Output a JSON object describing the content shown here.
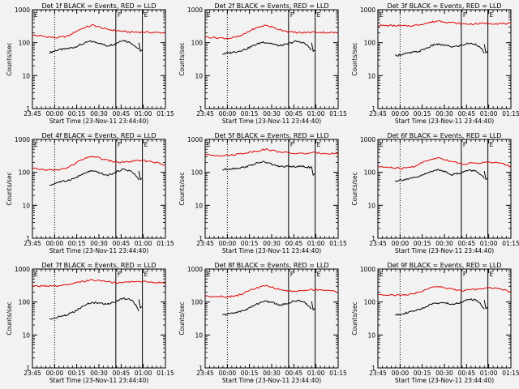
{
  "chart_data": [
    {
      "type": "line",
      "title": "Det 1f BLACK = Events, RED = LLD",
      "xlabel": "Start Time (23-Nov-11 23:44:40)",
      "ylabel": "Counts/sec",
      "yscale": "log",
      "ylim": [
        1,
        1000
      ],
      "xticks": [
        "23:45",
        "00:00",
        "00:15",
        "00:30",
        "00:45",
        "01:00",
        "01:15"
      ],
      "yticks": [
        "1",
        "10",
        "100",
        "1000"
      ],
      "flags": [
        "E",
        "F",
        "E"
      ],
      "series": [
        {
          "color": "#000000",
          "values": [
            50,
            60,
            65,
            72,
            90,
            110,
            100,
            80,
            90,
            120,
            100,
            60
          ]
        },
        {
          "color": "#e00000",
          "values": [
            170,
            155,
            140,
            160,
            260,
            340,
            260,
            230,
            210,
            210,
            205,
            200
          ]
        }
      ]
    },
    {
      "type": "line",
      "title": "Det 2f BLACK = Events, RED = LLD",
      "xlabel": "Start Time (23-Nov-11 23:44:40)",
      "ylabel": "Counts/sec",
      "yscale": "log",
      "ylim": [
        1,
        1000
      ],
      "xticks": [
        "23:45",
        "00:00",
        "00:15",
        "00:30",
        "00:45",
        "01:00",
        "01:15"
      ],
      "yticks": [
        "1",
        "10",
        "100",
        "1000"
      ],
      "flags": [
        "E",
        "F",
        "E"
      ],
      "series": [
        {
          "color": "#000000",
          "values": [
            45,
            50,
            55,
            65,
            85,
            105,
            95,
            80,
            90,
            110,
            100,
            60
          ]
        },
        {
          "color": "#e00000",
          "values": [
            150,
            140,
            135,
            160,
            260,
            340,
            260,
            210,
            200,
            210,
            205,
            200
          ]
        }
      ]
    },
    {
      "type": "line",
      "title": "Det 3f BLACK = Events, RED = LLD",
      "xlabel": "Start Time (23-Nov-11 23:44:40)",
      "ylabel": "Counts/sec",
      "yscale": "log",
      "ylim": [
        1,
        1000
      ],
      "xticks": [
        "23:45",
        "00:00",
        "00:15",
        "00:30",
        "00:45",
        "01:00",
        "01:15"
      ],
      "yticks": [
        "1",
        "10",
        "100",
        "1000"
      ],
      "flags": [
        "E",
        "F",
        "E"
      ],
      "series": [
        {
          "color": "#000000",
          "values": [
            40,
            45,
            50,
            55,
            70,
            90,
            85,
            75,
            80,
            95,
            90,
            50
          ]
        },
        {
          "color": "#e00000",
          "values": [
            330,
            330,
            320,
            330,
            390,
            460,
            410,
            370,
            370,
            390,
            380,
            380
          ]
        }
      ]
    },
    {
      "type": "line",
      "title": "Det 4f BLACK = Events, RED = LLD",
      "xlabel": "Start Time (23-Nov-11 23:44:40)",
      "ylabel": "Counts/sec",
      "yscale": "log",
      "ylim": [
        1,
        1000
      ],
      "xticks": [
        "23:45",
        "00:00",
        "00:15",
        "00:30",
        "00:45",
        "01:00",
        "01:15"
      ],
      "yticks": [
        "1",
        "10",
        "100",
        "1000"
      ],
      "flags": [
        "E",
        "F",
        "E"
      ],
      "series": [
        {
          "color": "#000000",
          "values": [
            40,
            50,
            55,
            65,
            85,
            110,
            100,
            80,
            95,
            125,
            110,
            60
          ]
        },
        {
          "color": "#e00000",
          "values": [
            130,
            120,
            115,
            140,
            230,
            310,
            240,
            200,
            210,
            230,
            210,
            160
          ]
        }
      ]
    },
    {
      "type": "line",
      "title": "Det 5f BLACK = Events, RED = LLD",
      "xlabel": "Start Time (23-Nov-11 23:44:40)",
      "ylabel": "Counts/sec",
      "yscale": "log",
      "ylim": [
        1,
        1000
      ],
      "xticks": [
        "23:45",
        "00:00",
        "00:15",
        "00:30",
        "00:45",
        "01:00",
        "01:15"
      ],
      "yticks": [
        "1",
        "10",
        "100",
        "1000"
      ],
      "flags": [
        "E",
        "F",
        "E"
      ],
      "series": [
        {
          "color": "#000000",
          "values": [
            120,
            130,
            135,
            150,
            180,
            210,
            180,
            150,
            150,
            150,
            150,
            140
          ]
        },
        {
          "color": "#e00000",
          "values": [
            340,
            330,
            330,
            370,
            430,
            500,
            430,
            380,
            370,
            390,
            380,
            370
          ]
        }
      ]
    },
    {
      "type": "line",
      "title": "Det 6f BLACK = Events, RED = LLD",
      "xlabel": "Start Time (23-Nov-11 23:44:40)",
      "ylabel": "Counts/sec",
      "yscale": "log",
      "ylim": [
        1,
        1000
      ],
      "xticks": [
        "23:45",
        "00:00",
        "00:15",
        "00:30",
        "00:45",
        "01:00",
        "01:15"
      ],
      "yticks": [
        "1",
        "10",
        "100",
        "1000"
      ],
      "flags": [
        "E",
        "F",
        "E"
      ],
      "series": [
        {
          "color": "#000000",
          "values": [
            55,
            60,
            65,
            75,
            95,
            120,
            110,
            85,
            95,
            115,
            110,
            65
          ]
        },
        {
          "color": "#e00000",
          "values": [
            150,
            140,
            130,
            150,
            220,
            280,
            220,
            180,
            190,
            200,
            195,
            150
          ]
        }
      ]
    },
    {
      "type": "line",
      "title": "Det 7f BLACK = Events, RED = LLD",
      "xlabel": "Start Time (23-Nov-11 23:44:40)",
      "ylabel": "Counts/sec",
      "yscale": "log",
      "ylim": [
        1,
        1000
      ],
      "xticks": [
        "23:45",
        "00:00",
        "00:15",
        "00:30",
        "00:45",
        "01:00",
        "01:15"
      ],
      "yticks": [
        "1",
        "10",
        "100",
        "1000"
      ],
      "flags": [
        "E",
        "F",
        "E"
      ],
      "series": [
        {
          "color": "#000000",
          "values": [
            30,
            35,
            40,
            50,
            70,
            95,
            95,
            85,
            100,
            130,
            120,
            55
          ]
        },
        {
          "color": "#e00000",
          "values": [
            300,
            310,
            300,
            330,
            410,
            470,
            430,
            370,
            410,
            420,
            400,
            380
          ]
        }
      ]
    },
    {
      "type": "line",
      "title": "Det 8f BLACK = Events, RED = LLD",
      "xlabel": "Start Time (23-Nov-11 23:44:40)",
      "ylabel": "Counts/sec",
      "yscale": "log",
      "ylim": [
        1,
        1000
      ],
      "xticks": [
        "23:45",
        "00:00",
        "00:15",
        "00:30",
        "00:45",
        "01:00",
        "01:15"
      ],
      "yticks": [
        "1",
        "10",
        "100",
        "1000"
      ],
      "flags": [
        "E",
        "F",
        "E"
      ],
      "series": [
        {
          "color": "#000000",
          "values": [
            40,
            45,
            50,
            60,
            80,
            105,
            100,
            80,
            90,
            110,
            105,
            60
          ]
        },
        {
          "color": "#e00000",
          "values": [
            150,
            150,
            145,
            170,
            250,
            310,
            250,
            210,
            220,
            240,
            230,
            200
          ]
        }
      ]
    },
    {
      "type": "line",
      "title": "Det 9f BLACK = Events, RED = LLD",
      "xlabel": "Start Time (23-Nov-11 23:44:40)",
      "ylabel": "Counts/sec",
      "yscale": "log",
      "ylim": [
        1,
        1000
      ],
      "xticks": [
        "23:45",
        "00:00",
        "00:15",
        "00:30",
        "00:45",
        "01:00",
        "01:15"
      ],
      "yticks": [
        "1",
        "10",
        "100",
        "1000"
      ],
      "flags": [
        "E",
        "F",
        "E"
      ],
      "series": [
        {
          "color": "#000000",
          "values": [
            40,
            45,
            50,
            60,
            75,
            95,
            95,
            85,
            95,
            120,
            115,
            60
          ]
        },
        {
          "color": "#e00000",
          "values": [
            170,
            165,
            160,
            180,
            240,
            300,
            250,
            220,
            240,
            270,
            260,
            200
          ]
        }
      ]
    }
  ]
}
